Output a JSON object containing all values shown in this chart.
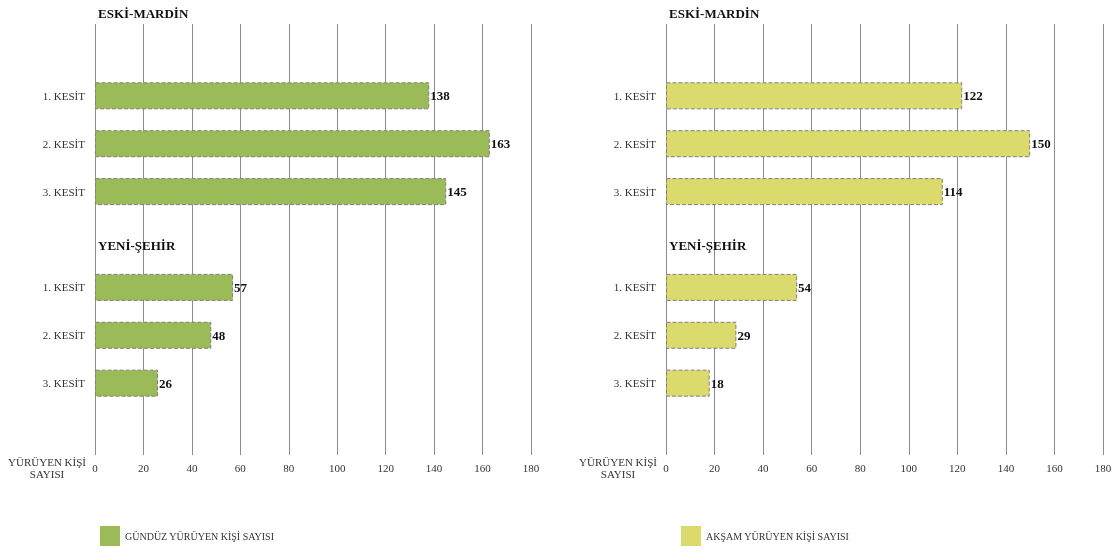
{
  "chart_data": [
    {
      "type": "bar",
      "orientation": "horizontal",
      "title": "ESKİ-MARDİN",
      "annotations": [
        "YENİ-ŞEHİR"
      ],
      "categories": [
        null,
        "1. KESİT",
        "2. KESİT",
        "3. KESİT",
        null,
        "1. KESİT",
        "2. KESİT",
        "3. KESİT",
        null
      ],
      "series": [
        {
          "name": "GÜNDÜZ YÜRÜYEN KİŞİ SAYISI",
          "color": "#9bbb59",
          "values": [
            null,
            138,
            163,
            145,
            null,
            57,
            48,
            26,
            null
          ]
        }
      ],
      "xlabel": "YÜRÜYEN KİŞİ SAYISI",
      "xlim": [
        0,
        180
      ],
      "xticks": [
        0,
        20,
        40,
        60,
        80,
        100,
        120,
        140,
        160,
        180
      ],
      "grid": "x",
      "legend": "bottom left",
      "data_labels": true
    },
    {
      "type": "bar",
      "orientation": "horizontal",
      "title": "ESKİ-MARDİN",
      "annotations": [
        "YENİ-ŞEHİR"
      ],
      "categories": [
        null,
        "1. KESİT",
        "2. KESİT",
        "3. KESİT",
        null,
        "1. KESİT",
        "2. KESİT",
        "3. KESİT",
        null
      ],
      "series": [
        {
          "name": "AKŞAM YÜRÜYEN KİŞİ SAYISI",
          "color": "#dbdb6d",
          "values": [
            null,
            122,
            150,
            114,
            null,
            54,
            29,
            18,
            null
          ]
        }
      ],
      "xlabel": "YÜRÜYEN KİŞİ SAYISI",
      "xlim": [
        0,
        180
      ],
      "xticks": [
        0,
        20,
        40,
        60,
        80,
        100,
        120,
        140,
        160,
        180
      ],
      "grid": "x",
      "legend": "bottom left",
      "data_labels": true
    }
  ]
}
